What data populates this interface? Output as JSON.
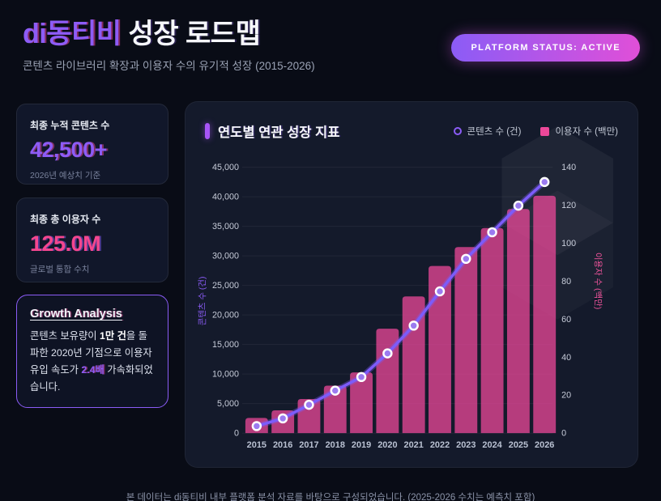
{
  "colors": {
    "accent_purple": "#8d5cf6",
    "accent_pink": "#f4468f",
    "badge_gradient_start": "#8b5cf6",
    "badge_gradient_end": "#e04fd8",
    "line": "#7c5cfa",
    "bar": "#ec4899",
    "marker_fill": "#9b7bf0",
    "accent_bar": "#a855f7"
  },
  "header": {
    "title_accent": "di동티비",
    "title_rest": " 성장 로드맵",
    "subtitle": "콘텐츠 라이브러리 확장과 이용자 수의 유기적 성장 (2015-2026)",
    "status_badge": "PLATFORM STATUS: ACTIVE"
  },
  "stats": [
    {
      "label": "최종 누적 콘텐츠 수",
      "value": "42,500+",
      "note": "2026년 예상치 기준",
      "color": "#8d5cf6"
    },
    {
      "label": "최종 총 이용자 수",
      "value": "125.0M",
      "note": "글로벌 통합 수치",
      "color": "#f4468f"
    }
  ],
  "analysis": {
    "heading": "Growth Analysis",
    "segments": [
      {
        "text": "콘텐츠 보유량이 ",
        "style": "normal"
      },
      {
        "text": "1만 건",
        "style": "bold"
      },
      {
        "text": "을 돌파한 2020년 기점으로 이용자 유입 속도가 ",
        "style": "normal"
      },
      {
        "text": "2.4배",
        "style": "highlight"
      },
      {
        "text": " 가속화되었습니다.",
        "style": "normal"
      }
    ],
    "highlight_color": "#8d5cf6"
  },
  "chart_data": {
    "type": "combo",
    "title": "연도별 연관 성장 지표",
    "categories": [
      "2015",
      "2016",
      "2017",
      "2018",
      "2019",
      "2020",
      "2021",
      "2022",
      "2023",
      "2024",
      "2025",
      "2026"
    ],
    "series": [
      {
        "name": "콘텐츠 수 (건)",
        "type": "line",
        "axis": "left",
        "color": "#7c5cfa",
        "values": [
          1200,
          2500,
          4800,
          7200,
          9500,
          13500,
          18200,
          24000,
          29500,
          34000,
          38500,
          42500
        ]
      },
      {
        "name": "이용자 수 (백만)",
        "type": "bar",
        "axis": "right",
        "color": "#ec4899",
        "values": [
          8,
          12,
          18,
          25,
          32,
          55,
          72,
          88,
          98,
          108,
          118,
          125
        ]
      }
    ],
    "left_axis": {
      "label": "콘텐츠 수 (건)",
      "min": 0,
      "max": 45000,
      "step": 5000,
      "color": "#8b5cf6"
    },
    "right_axis": {
      "label": "이용자 수 (백만)",
      "min": 0,
      "max": 140,
      "step": 20,
      "color": "#f0549c"
    },
    "grid": true,
    "legend_position": "top-right"
  },
  "footer": {
    "disclaimer": "본 데이터는 di동티비 내부 플랫폼 분석 자료를 바탕으로 구성되었습니다. (2025-2026 수치는 예측치 포함)"
  }
}
